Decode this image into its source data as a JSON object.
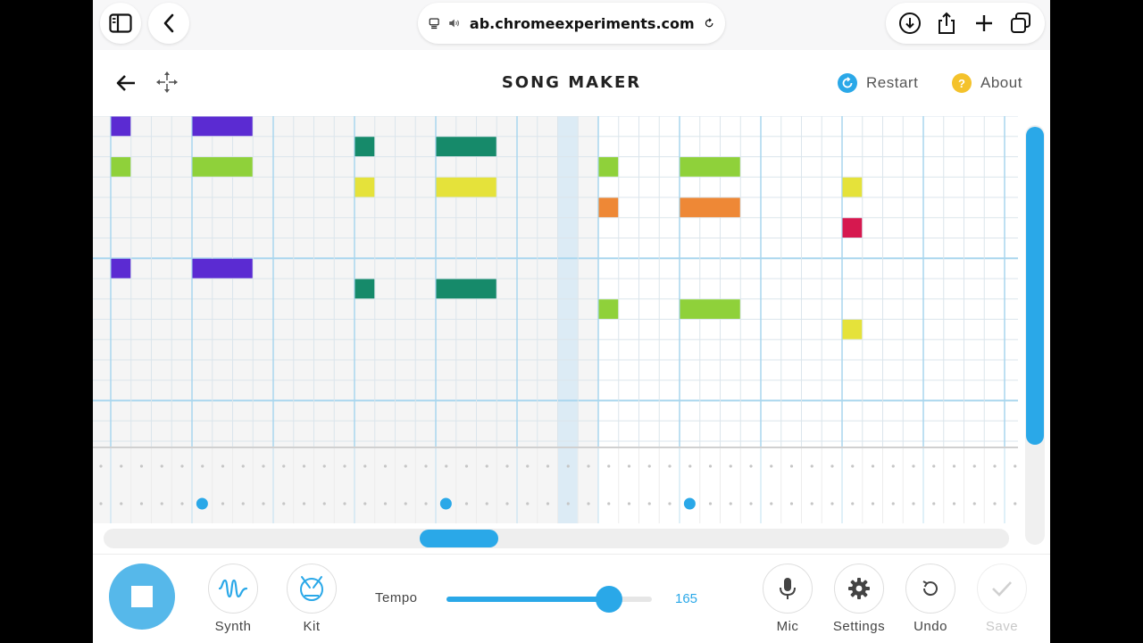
{
  "browser": {
    "url": "ab.chromeexperiments.com",
    "icons": [
      "sidebar-icon",
      "chevron-left-icon",
      "tab-overview-icon",
      "speaker-icon",
      "reload-icon",
      "download-icon",
      "share-icon",
      "plus-icon",
      "tabs-icon"
    ]
  },
  "header": {
    "title": "SONG MAKER",
    "restart_label": "Restart",
    "about_label": "About",
    "about_symbol": "?",
    "restart_color": "#2aa8e8",
    "about_color": "#f4c22b"
  },
  "grid": {
    "columns": 45,
    "melody_rows": 16,
    "rhythm_rows": 2,
    "highlight_column": 23,
    "beats_per_bar": 4,
    "octave_rows": 7,
    "notes": [
      {
        "row": 1,
        "col": 1,
        "len": 1,
        "color": "#5b2bd2"
      },
      {
        "row": 1,
        "col": 5,
        "len": 3,
        "color": "#5b2bd2"
      },
      {
        "row": 3,
        "col": 1,
        "len": 1,
        "color": "#8fd13a"
      },
      {
        "row": 3,
        "col": 5,
        "len": 3,
        "color": "#8fd13a"
      },
      {
        "row": 8,
        "col": 1,
        "len": 1,
        "color": "#5b2bd2"
      },
      {
        "row": 8,
        "col": 5,
        "len": 3,
        "color": "#5b2bd2"
      },
      {
        "row": 2,
        "col": 13,
        "len": 1,
        "color": "#168a6a"
      },
      {
        "row": 2,
        "col": 17,
        "len": 3,
        "color": "#168a6a"
      },
      {
        "row": 4,
        "col": 13,
        "len": 1,
        "color": "#e5e23a"
      },
      {
        "row": 4,
        "col": 17,
        "len": 3,
        "color": "#e5e23a"
      },
      {
        "row": 9,
        "col": 13,
        "len": 1,
        "color": "#168a6a"
      },
      {
        "row": 9,
        "col": 17,
        "len": 3,
        "color": "#168a6a"
      },
      {
        "row": 3,
        "col": 25,
        "len": 1,
        "color": "#8fd13a"
      },
      {
        "row": 3,
        "col": 29,
        "len": 3,
        "color": "#8fd13a"
      },
      {
        "row": 5,
        "col": 25,
        "len": 1,
        "color": "#ee8836"
      },
      {
        "row": 5,
        "col": 29,
        "len": 3,
        "color": "#ee8836"
      },
      {
        "row": 10,
        "col": 25,
        "len": 1,
        "color": "#8fd13a"
      },
      {
        "row": 10,
        "col": 29,
        "len": 3,
        "color": "#8fd13a"
      },
      {
        "row": 4,
        "col": 37,
        "len": 1,
        "color": "#e5e23a"
      },
      {
        "row": 6,
        "col": 37,
        "len": 1,
        "color": "#d6184f"
      },
      {
        "row": 11,
        "col": 37,
        "len": 1,
        "color": "#e5e23a"
      }
    ],
    "rhythm_hits": [
      {
        "row": 1,
        "col": 5
      },
      {
        "row": 1,
        "col": 17
      },
      {
        "row": 1,
        "col": 29
      }
    ]
  },
  "toolbar": {
    "synth_label": "Synth",
    "kit_label": "Kit",
    "tempo_label": "Tempo",
    "tempo_value": "165",
    "tempo_fraction": 0.79,
    "mic_label": "Mic",
    "settings_label": "Settings",
    "undo_label": "Undo",
    "save_label": "Save"
  }
}
